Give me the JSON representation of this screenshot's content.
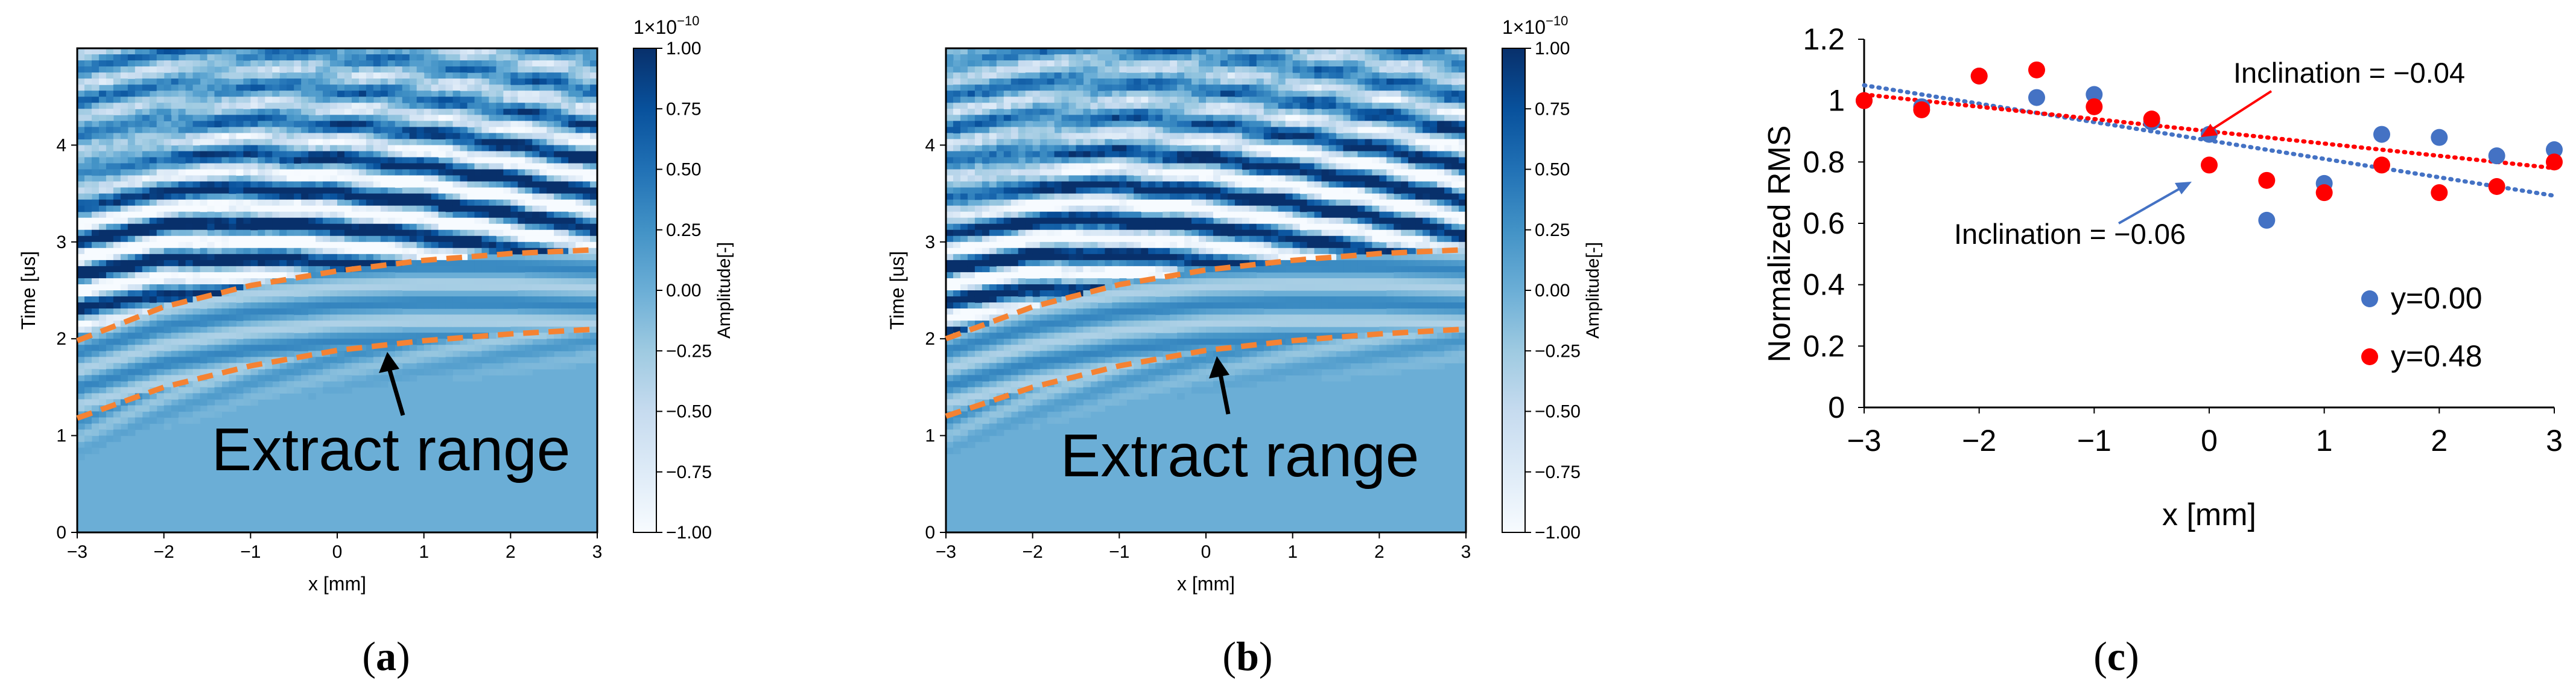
{
  "panels": [
    {
      "label_open": "(",
      "label_letter": "a",
      "label_close": ")",
      "exponent_base": "1×10",
      "exponent_power": "−10",
      "annotation": "Extract range"
    },
    {
      "label_open": "(",
      "label_letter": "b",
      "label_close": ")",
      "exponent_base": "1×10",
      "exponent_power": "−10",
      "annotation": "Extract range"
    },
    {
      "label_open": "(",
      "label_letter": "c",
      "label_close": ")"
    }
  ],
  "colors": {
    "blue_dark": "#08306b",
    "blue_mid": "#4292c6",
    "blue_bg": "#6baed6",
    "orange_dashed": "#f58232",
    "series_blue": "#4472c4",
    "series_red": "#ff0000"
  },
  "chart_data": [
    {
      "type": "heatmap",
      "panel": "a",
      "xlabel": "x [mm]",
      "ylabel": "Time [us]",
      "xlim": [
        -3,
        3
      ],
      "ylim": [
        0,
        5
      ],
      "xticks": [
        -3,
        -2,
        -1,
        0,
        1,
        2,
        3
      ],
      "xtick_labels": [
        "−3",
        "−2",
        "−1",
        "0",
        "1",
        "2",
        "3"
      ],
      "yticks": [
        0,
        1,
        2,
        3,
        4
      ],
      "ytick_labels": [
        "0",
        "1",
        "2",
        "3",
        "4"
      ],
      "colorbar": {
        "label": "Amplitude[-]",
        "range": [
          -1,
          1
        ],
        "ticks": [
          1,
          0.75,
          0.5,
          0.25,
          0,
          -0.25,
          -0.5,
          -0.75,
          -1
        ],
        "tick_labels": [
          "1.00",
          "0.75",
          "0.50",
          "0.25",
          "0.00",
          "−0.25",
          "−0.50",
          "−0.75",
          "−1.00"
        ]
      },
      "extract_range": {
        "upper_curve": {
          "x": [
            -3,
            -2,
            -1,
            0,
            1,
            2,
            3
          ],
          "t": [
            1.98,
            2.33,
            2.55,
            2.7,
            2.81,
            2.88,
            2.92
          ]
        },
        "lower_curve": {
          "x": [
            -3,
            -2,
            -1,
            0,
            1,
            2,
            3
          ],
          "t": [
            1.18,
            1.5,
            1.72,
            1.88,
            1.98,
            2.05,
            2.1
          ]
        }
      }
    },
    {
      "type": "heatmap",
      "panel": "b",
      "xlabel": "x [mm]",
      "ylabel": "Time [us]",
      "xlim": [
        -3,
        3
      ],
      "ylim": [
        0,
        5
      ],
      "xticks": [
        -3,
        -2,
        -1,
        0,
        1,
        2,
        3
      ],
      "xtick_labels": [
        "−3",
        "−2",
        "−1",
        "0",
        "1",
        "2",
        "3"
      ],
      "yticks": [
        0,
        1,
        2,
        3,
        4
      ],
      "ytick_labels": [
        "0",
        "1",
        "2",
        "3",
        "4"
      ],
      "colorbar": {
        "label": "Amplitude[-]",
        "range": [
          -1,
          1
        ],
        "ticks": [
          1,
          0.75,
          0.5,
          0.25,
          0,
          -0.25,
          -0.5,
          -0.75,
          -1
        ],
        "tick_labels": [
          "1.00",
          "0.75",
          "0.50",
          "0.25",
          "0.00",
          "−0.25",
          "−0.50",
          "−0.75",
          "−1.00"
        ]
      },
      "extract_range": {
        "upper_curve": {
          "x": [
            -3,
            -2,
            -1,
            0,
            1,
            2,
            3
          ],
          "t": [
            2.0,
            2.33,
            2.56,
            2.71,
            2.81,
            2.88,
            2.92
          ]
        },
        "lower_curve": {
          "x": [
            -3,
            -2,
            -1,
            0,
            1,
            2,
            3
          ],
          "t": [
            1.2,
            1.5,
            1.72,
            1.88,
            1.98,
            2.05,
            2.1
          ]
        }
      }
    },
    {
      "type": "scatter",
      "panel": "c",
      "xlabel": "x [mm]",
      "ylabel": "Normalized RMS",
      "xlim": [
        -3,
        3
      ],
      "ylim": [
        0,
        1.2
      ],
      "xticks": [
        -3,
        -2,
        -1,
        0,
        1,
        2,
        3
      ],
      "xtick_labels": [
        "−3",
        "−2",
        "−1",
        "0",
        "1",
        "2",
        "3"
      ],
      "yticks": [
        0,
        0.2,
        0.4,
        0.6,
        0.8,
        1,
        1.2
      ],
      "ytick_labels": [
        "0",
        "0.2",
        "0.4",
        "0.6",
        "0.8",
        "1",
        "1.2"
      ],
      "series": [
        {
          "name": "y=0.00",
          "color": "#4472c4",
          "x": [
            -3,
            -2.5,
            -2,
            -1.5,
            -1,
            -0.5,
            0,
            0.5,
            1,
            1.5,
            2,
            2.5,
            3
          ],
          "values": [
            1.0,
            0.98,
            1.08,
            1.01,
            1.02,
            0.93,
            0.89,
            0.61,
            0.73,
            0.89,
            0.88,
            0.82,
            0.84
          ],
          "trend": {
            "x": [
              -3,
              3
            ],
            "y": [
              1.05,
              0.69
            ]
          }
        },
        {
          "name": "y=0.48",
          "color": "#ff0000",
          "x": [
            -3,
            -2.5,
            -2,
            -1.5,
            -1,
            -0.5,
            0,
            0.5,
            1,
            1.5,
            2,
            2.5,
            3
          ],
          "values": [
            1.0,
            0.97,
            1.08,
            1.1,
            0.98,
            0.94,
            0.79,
            0.74,
            0.7,
            0.79,
            0.7,
            0.72,
            0.8
          ],
          "trend": {
            "x": [
              -3,
              3
            ],
            "y": [
              1.02,
              0.78
            ]
          }
        }
      ],
      "annotations": [
        {
          "text": "Inclination = −0.04",
          "series": "y=0.48",
          "target": {
            "x": 0.8,
            "y": 0.86
          }
        },
        {
          "text": "Inclination = −0.06",
          "series": "y=0.00",
          "target": {
            "x": 0.2,
            "y": 0.8
          }
        }
      ],
      "legend_position": "bottom-right"
    }
  ]
}
